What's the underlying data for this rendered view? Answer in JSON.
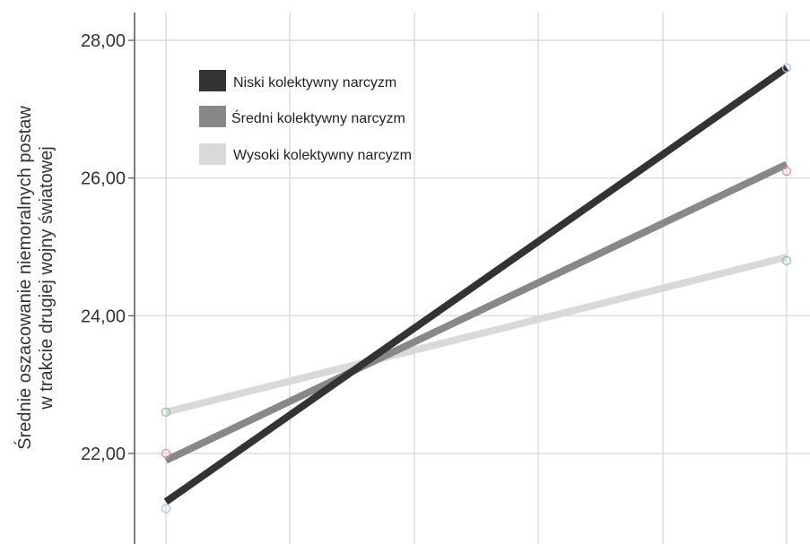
{
  "chart_data": {
    "type": "line",
    "x": [
      0,
      1
    ],
    "ylabel_lines": [
      "Średnie oszacowanie niemoralnych postaw",
      "w trakcie drugiej wojny światowej"
    ],
    "ylim": [
      20.6,
      28.4
    ],
    "yticks": [
      22,
      24,
      26,
      28
    ],
    "ytick_labels": [
      "22,00",
      "24,00",
      "26,00",
      "28,00"
    ],
    "grid": true,
    "legend_placement": "top-left",
    "series": [
      {
        "name": "Niski kolektywny narcyzm",
        "values": [
          21.3,
          27.6
        ],
        "color": "#333333",
        "marker_values": [
          21.2,
          27.6
        ],
        "marker_color": "#a9c6ea"
      },
      {
        "name": "Średni kolektywny narcyzm",
        "values": [
          21.9,
          26.2
        ],
        "color": "#888888",
        "marker_values": [
          22.0,
          26.1
        ],
        "marker_color": "#e88aa0"
      },
      {
        "name": "Wysoki kolektywny narcyzm",
        "values": [
          22.6,
          24.85
        ],
        "color": "#d9d9d9",
        "marker_values": [
          22.6,
          24.8
        ],
        "marker_color": "#8dc48d"
      }
    ]
  }
}
